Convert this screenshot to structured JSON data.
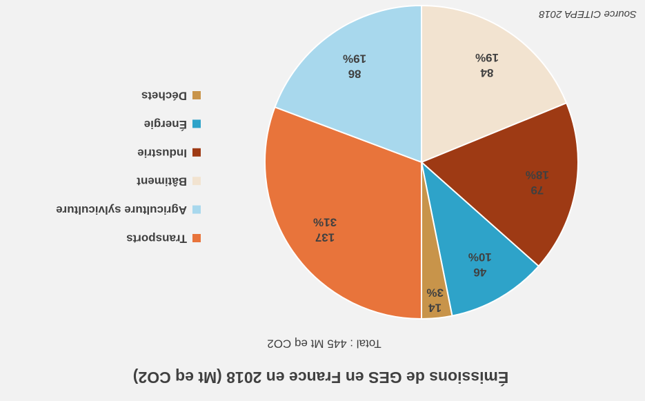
{
  "chart_data": {
    "type": "pie",
    "title": "Émissions de GES en France en 2018 (Mt eq CO2)",
    "subtitle": "Total : 445 Mt eq CO2",
    "source": "Source CITEPA 2018",
    "categories": [
      "Transports",
      "Agriculture sylviculture",
      "Bâtiment",
      "Industrie",
      "Énergie",
      "Déchets"
    ],
    "values": [
      137,
      86,
      84,
      79,
      46,
      14
    ],
    "percentage_labels": [
      "31%",
      "19%",
      "19%",
      "18%",
      "10%",
      "3%"
    ],
    "colors": [
      "#e8743b",
      "#a8d8ed",
      "#f2e3d0",
      "#9e3a14",
      "#2ea3c9",
      "#c8944a"
    ],
    "legend": "right"
  }
}
